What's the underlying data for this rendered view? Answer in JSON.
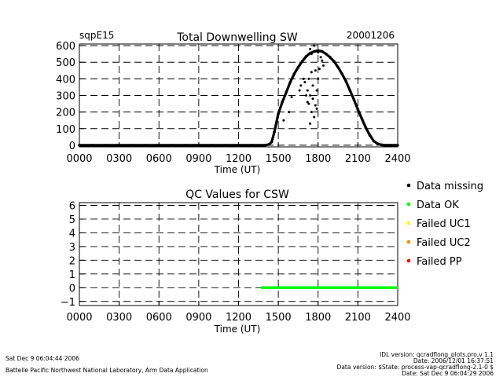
{
  "chart_data": [
    {
      "type": "scatter",
      "site": "sqpE15",
      "title": "Total Downwelling SW",
      "date": "20001206",
      "xlabel": "Time (UT)",
      "ylabel": "",
      "xlim": [
        0,
        24
      ],
      "ylim": [
        -10,
        610
      ],
      "x_ticks": [
        0,
        3,
        6,
        9,
        12,
        15,
        18,
        21,
        24
      ],
      "x_tick_labels": [
        "0000",
        "0300",
        "0600",
        "0900",
        "1200",
        "1500",
        "1800",
        "2100",
        "2400"
      ],
      "y_ticks": [
        0,
        100,
        200,
        300,
        400,
        500,
        600
      ],
      "y_tick_labels": [
        "0",
        "100",
        "200",
        "300",
        "400",
        "500",
        "600"
      ],
      "grid": true,
      "series": [
        {
          "color": "#000000",
          "x": [
            0,
            1,
            2,
            3,
            4,
            5,
            6,
            7,
            8,
            9,
            10,
            11,
            12,
            13,
            14.0,
            14.3,
            14.5,
            14.7,
            15.0,
            15.3,
            15.6,
            15.9,
            16.2,
            16.5,
            16.8,
            17.1,
            17.4,
            17.7,
            18.0,
            18.3,
            18.6,
            18.9,
            19.2,
            19.5,
            19.8,
            20.1,
            20.4,
            20.7,
            21.0,
            21.3,
            21.6,
            21.9,
            22.2,
            22.5,
            22.8,
            23.0,
            23.2,
            23.5,
            24.0
          ],
          "y": [
            0,
            0,
            0,
            0,
            0,
            0,
            0,
            0,
            0,
            0,
            0,
            0,
            0,
            0,
            0,
            5,
            20,
            80,
            190,
            260,
            320,
            380,
            430,
            470,
            505,
            535,
            555,
            565,
            570,
            565,
            550,
            530,
            505,
            470,
            430,
            385,
            330,
            275,
            215,
            160,
            105,
            60,
            25,
            8,
            2,
            0,
            0,
            0,
            0
          ]
        },
        {
          "color": "#000000",
          "x": [
            15.4,
            15.8,
            16.0,
            16.6,
            16.7,
            16.9,
            17.0,
            17.1,
            17.2,
            17.2,
            17.3,
            17.3,
            17.4,
            17.4,
            17.5,
            17.5,
            17.6,
            17.6,
            17.7,
            17.8,
            17.8,
            17.9,
            17.9,
            18.0,
            18.1,
            18.2,
            18.3,
            18.4,
            17.4,
            17.7,
            17.5,
            18.0
          ],
          "y": [
            150,
            200,
            290,
            330,
            360,
            400,
            380,
            300,
            260,
            330,
            250,
            400,
            300,
            130,
            440,
            200,
            280,
            360,
            170,
            240,
            450,
            330,
            220,
            400,
            460,
            530,
            510,
            480,
            580,
            600,
            550,
            560
          ]
        }
      ]
    },
    {
      "type": "scatter",
      "title": "QC Values for CSW",
      "xlabel": "Time (UT)",
      "ylabel": "",
      "xlim": [
        0,
        24
      ],
      "ylim": [
        -1.3,
        6.2
      ],
      "x_ticks": [
        0,
        3,
        6,
        9,
        12,
        15,
        18,
        21,
        24
      ],
      "x_tick_labels": [
        "0000",
        "0300",
        "0600",
        "0900",
        "1200",
        "1500",
        "1800",
        "2100",
        "2400"
      ],
      "y_ticks": [
        -1,
        0,
        1,
        2,
        3,
        4,
        5,
        6
      ],
      "y_tick_labels": [
        "−1",
        "0",
        "1",
        "2",
        "3",
        "4",
        "5",
        "6"
      ],
      "grid": true,
      "legend_position": "right",
      "legend": [
        {
          "label": "Data missing",
          "color": "#000000"
        },
        {
          "label": "Data OK",
          "color": "#00ff00"
        },
        {
          "label": "Failed UC1",
          "color": "#ffff00"
        },
        {
          "label": "Failed UC2",
          "color": "#ff8c00"
        },
        {
          "label": "Failed PP",
          "color": "#ff0000"
        }
      ],
      "series": [
        {
          "name": "Data OK",
          "color": "#00ff00",
          "x": [
            13.7,
            24.0
          ],
          "y": [
            0,
            0
          ]
        }
      ]
    }
  ],
  "footer": {
    "left_line1": "Sat Dec  9 06:04:44 2006",
    "left_line2": "Battelle Pacific Northwest National Laboratory, Arm Data Application",
    "right_line1": "IDL version: qcradflong_plots.pro,v 1.1",
    "right_line2": "Date: 2006/12/01 16:37:51",
    "right_line3": "Data version: $State: process-vap-qcradflong-2.1-0 $",
    "right_line4": "Date: Sat Dec  9 06:04:29 2006"
  }
}
